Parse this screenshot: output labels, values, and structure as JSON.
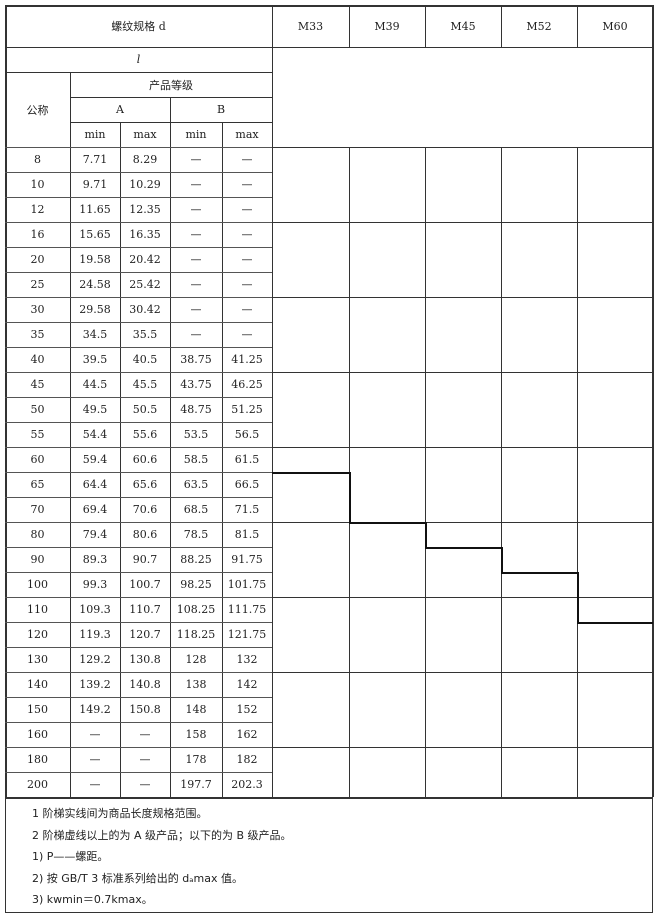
{
  "header": {
    "thread_spec": "螺纹规格 d",
    "sizes": [
      "M33",
      "M39",
      "M45",
      "M52",
      "M60"
    ],
    "length": "l",
    "grade": "产品等级",
    "nominal": "公称",
    "grade_a": "A",
    "grade_b": "B",
    "min": "min",
    "max": "max"
  },
  "rows": [
    [
      "8",
      "7.71",
      "8.29",
      "—",
      "—"
    ],
    [
      "10",
      "9.71",
      "10.29",
      "—",
      "—"
    ],
    [
      "12",
      "11.65",
      "12.35",
      "—",
      "—"
    ],
    [
      "16",
      "15.65",
      "16.35",
      "—",
      "—"
    ],
    [
      "20",
      "19.58",
      "20.42",
      "—",
      "—"
    ],
    [
      "25",
      "24.58",
      "25.42",
      "—",
      "—"
    ],
    [
      "30",
      "29.58",
      "30.42",
      "—",
      "—"
    ],
    [
      "35",
      "34.5",
      "35.5",
      "—",
      "—"
    ],
    [
      "40",
      "39.5",
      "40.5",
      "38.75",
      "41.25"
    ],
    [
      "45",
      "44.5",
      "45.5",
      "43.75",
      "46.25"
    ],
    [
      "50",
      "49.5",
      "50.5",
      "48.75",
      "51.25"
    ],
    [
      "55",
      "54.4",
      "55.6",
      "53.5",
      "56.5"
    ],
    [
      "60",
      "59.4",
      "60.6",
      "58.5",
      "61.5"
    ],
    [
      "65",
      "64.4",
      "65.6",
      "63.5",
      "66.5"
    ],
    [
      "70",
      "69.4",
      "70.6",
      "68.5",
      "71.5"
    ],
    [
      "80",
      "79.4",
      "80.6",
      "78.5",
      "81.5"
    ],
    [
      "90",
      "89.3",
      "90.7",
      "88.25",
      "91.75"
    ],
    [
      "100",
      "99.3",
      "100.7",
      "98.25",
      "101.75"
    ],
    [
      "110",
      "109.3",
      "110.7",
      "108.25",
      "111.75"
    ],
    [
      "120",
      "119.3",
      "120.7",
      "118.25",
      "121.75"
    ],
    [
      "130",
      "129.2",
      "130.8",
      "128",
      "132"
    ],
    [
      "140",
      "139.2",
      "140.8",
      "138",
      "142"
    ],
    [
      "150",
      "149.2",
      "150.8",
      "148",
      "152"
    ],
    [
      "160",
      "—",
      "—",
      "158",
      "162"
    ],
    [
      "180",
      "—",
      "—",
      "178",
      "182"
    ],
    [
      "200",
      "—",
      "—",
      "197.7",
      "202.3"
    ]
  ],
  "step_rows": [
    "65",
    "80",
    "90",
    "100",
    "120"
  ],
  "notes": [
    "1 阶梯实线间为商品长度规格范围。",
    "2 阶梯虚线以上的为 A 级产品；以下的为 B 级产品。",
    "1) P——螺距。",
    "2) 按 GB/T 3 标准系列给出的 dₐmax 值。",
    "3) kwmin＝0.7kmax。"
  ]
}
